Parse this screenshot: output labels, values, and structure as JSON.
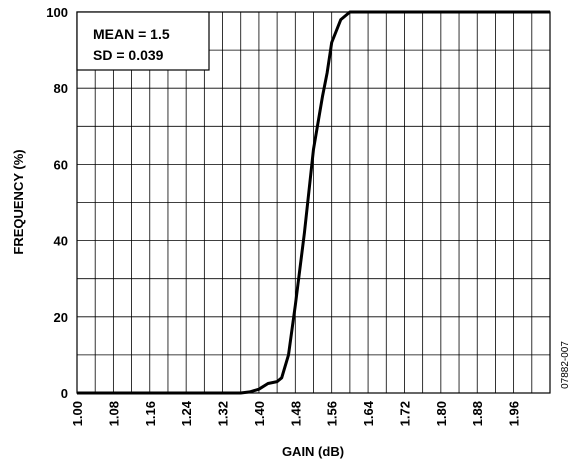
{
  "chart_data": {
    "type": "line",
    "title": "",
    "xlabel": "GAIN (dB)",
    "ylabel": "FREQUENCY (%)",
    "xlim": [
      1.0,
      2.04
    ],
    "ylim": [
      0,
      100
    ],
    "x_ticks": [
      "1.00",
      "1.08",
      "1.16",
      "1.24",
      "1.32",
      "1.40",
      "1.48",
      "1.56",
      "1.64",
      "1.72",
      "1.80",
      "1.88",
      "1.96"
    ],
    "y_ticks": [
      "0",
      "20",
      "40",
      "60",
      "80",
      "100"
    ],
    "grid": true,
    "annotations": [
      "MEAN = 1.5",
      "SD = 0.039"
    ],
    "figure_id": "07882-007",
    "series": [
      {
        "color": "#000000",
        "points": [
          [
            1.0,
            0
          ],
          [
            1.36,
            0
          ],
          [
            1.38,
            0.3
          ],
          [
            1.4,
            1
          ],
          [
            1.42,
            2.5
          ],
          [
            1.44,
            3
          ],
          [
            1.45,
            4
          ],
          [
            1.465,
            10
          ],
          [
            1.48,
            23
          ],
          [
            1.5,
            42
          ],
          [
            1.52,
            64
          ],
          [
            1.54,
            78
          ],
          [
            1.55,
            84
          ],
          [
            1.56,
            92
          ],
          [
            1.58,
            98
          ],
          [
            1.6,
            100
          ],
          [
            2.04,
            100
          ]
        ]
      }
    ]
  }
}
